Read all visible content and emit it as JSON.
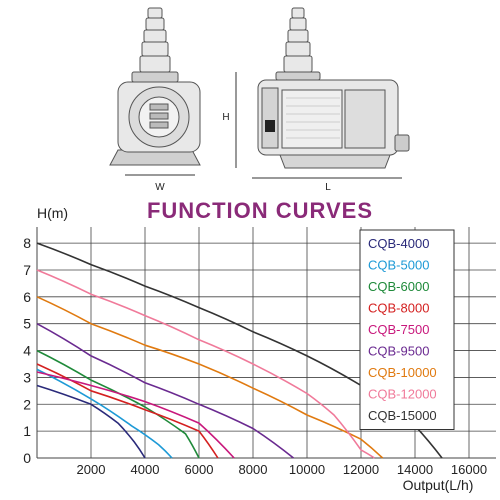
{
  "dimensions": {
    "h": "H",
    "w": "W",
    "l": "L"
  },
  "colors": {
    "title": "#8a2a78",
    "grid": "#444444",
    "pump_line": "#555555"
  },
  "chart_data": {
    "type": "line",
    "title": "FUNCTION CURVES",
    "xlabel": "Output(L/h)",
    "ylabel": "H(m)",
    "xlim": [
      0,
      17000
    ],
    "ylim": [
      0,
      8.6
    ],
    "xticks": [
      2000,
      4000,
      6000,
      8000,
      10000,
      12000,
      14000,
      16000
    ],
    "yticks": [
      0,
      1,
      2,
      3,
      4,
      5,
      6,
      7,
      8
    ],
    "grid": true,
    "legend_position": "top-right",
    "series": [
      {
        "name": "CQB-4000",
        "color": "#2a2a7a",
        "points": [
          [
            0,
            2.7
          ],
          [
            2000,
            2.0
          ],
          [
            3000,
            1.3
          ],
          [
            3600,
            0.6
          ],
          [
            4000,
            0
          ]
        ]
      },
      {
        "name": "CQB-5000",
        "color": "#1e9ad6",
        "points": [
          [
            0,
            3.3
          ],
          [
            2000,
            2.2
          ],
          [
            3500,
            1.2
          ],
          [
            4500,
            0.5
          ],
          [
            5000,
            0
          ]
        ]
      },
      {
        "name": "CQB-6000",
        "color": "#1f8a3a",
        "points": [
          [
            0,
            4.0
          ],
          [
            2000,
            2.9
          ],
          [
            4000,
            1.9
          ],
          [
            5500,
            0.9
          ],
          [
            6000,
            0
          ]
        ]
      },
      {
        "name": "CQB-8000",
        "color": "#d42020",
        "points": [
          [
            0,
            3.5
          ],
          [
            2000,
            2.5
          ],
          [
            4000,
            1.8
          ],
          [
            6000,
            1.0
          ],
          [
            6700,
            0
          ]
        ]
      },
      {
        "name": "CQB-7500",
        "color": "#c8187c",
        "points": [
          [
            0,
            3.2
          ],
          [
            2000,
            2.7
          ],
          [
            4000,
            2.1
          ],
          [
            6000,
            1.3
          ],
          [
            7300,
            0
          ]
        ]
      },
      {
        "name": "CQB-9500",
        "color": "#6a2a90",
        "points": [
          [
            0,
            5.0
          ],
          [
            2000,
            3.8
          ],
          [
            4000,
            2.8
          ],
          [
            6000,
            2.0
          ],
          [
            8000,
            1.1
          ],
          [
            9500,
            0
          ]
        ]
      },
      {
        "name": "CQB-10000",
        "color": "#e07a10",
        "points": [
          [
            0,
            6.0
          ],
          [
            2000,
            5.0
          ],
          [
            4000,
            4.2
          ],
          [
            6000,
            3.5
          ],
          [
            8000,
            2.6
          ],
          [
            10000,
            1.6
          ],
          [
            12000,
            0.7
          ],
          [
            12800,
            0
          ]
        ]
      },
      {
        "name": "CQB-12000",
        "color": "#f07a9a",
        "points": [
          [
            0,
            7.0
          ],
          [
            2000,
            6.1
          ],
          [
            4000,
            5.3
          ],
          [
            6000,
            4.4
          ],
          [
            8000,
            3.5
          ],
          [
            10000,
            2.4
          ],
          [
            11000,
            1.6
          ],
          [
            12000,
            0.3
          ],
          [
            12500,
            0
          ]
        ]
      },
      {
        "name": "CQB-15000",
        "color": "#333333",
        "points": [
          [
            0,
            8.0
          ],
          [
            2000,
            7.2
          ],
          [
            4000,
            6.4
          ],
          [
            6000,
            5.6
          ],
          [
            8000,
            4.7
          ],
          [
            10000,
            3.8
          ],
          [
            12000,
            2.7
          ],
          [
            14000,
            1.2
          ],
          [
            15000,
            0
          ]
        ]
      }
    ]
  }
}
